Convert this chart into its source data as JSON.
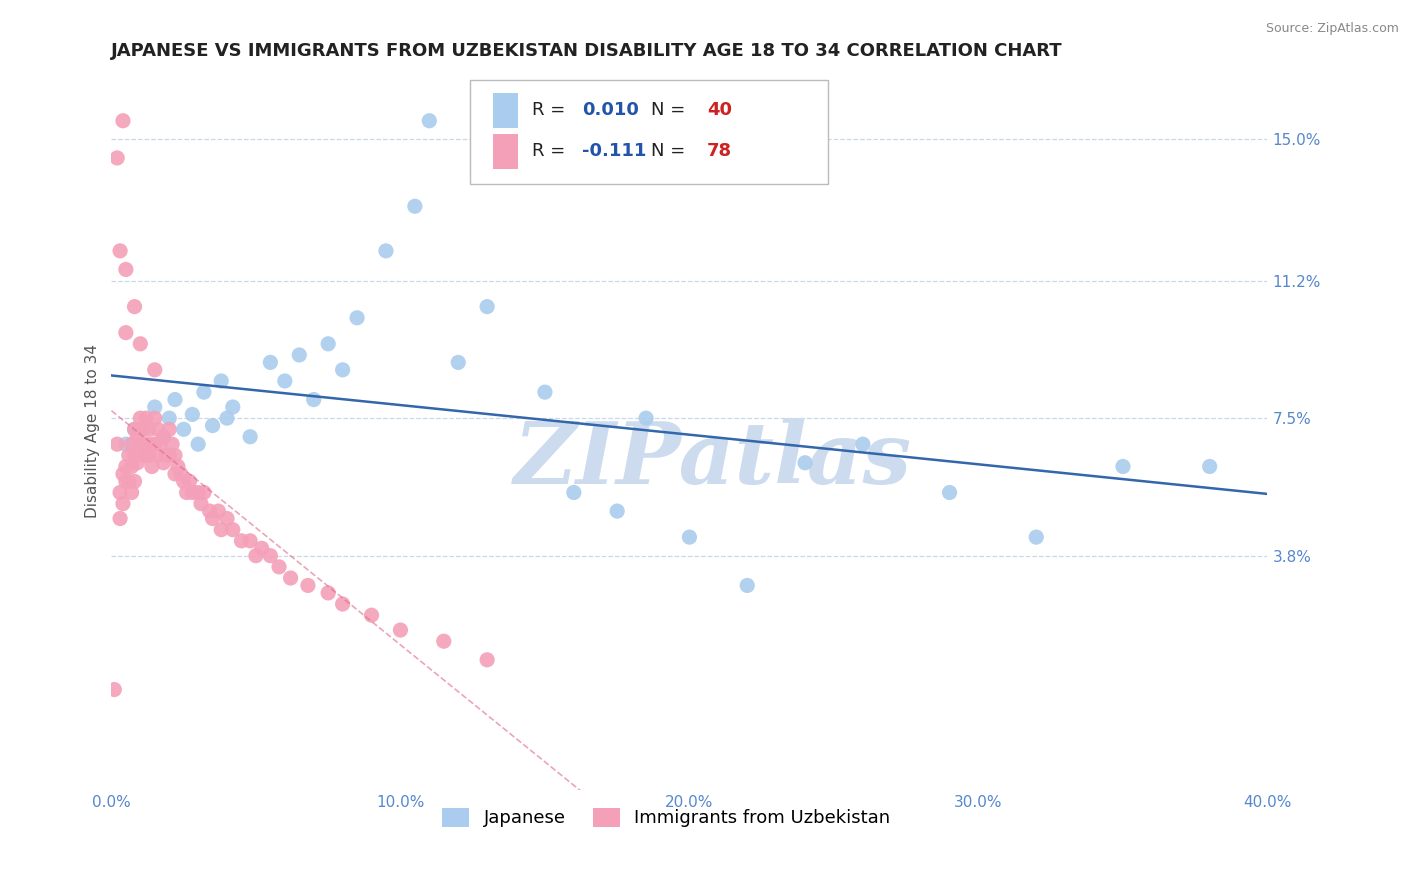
{
  "title": "JAPANESE VS IMMIGRANTS FROM UZBEKISTAN DISABILITY AGE 18 TO 34 CORRELATION CHART",
  "source": "Source: ZipAtlas.com",
  "ylabel": "Disability Age 18 to 34",
  "xlim": [
    0.0,
    0.4
  ],
  "ylim": [
    -0.025,
    0.168
  ],
  "yticks": [
    0.038,
    0.075,
    0.112,
    0.15
  ],
  "ytick_labels": [
    "3.8%",
    "7.5%",
    "11.2%",
    "15.0%"
  ],
  "xticks": [
    0.0,
    0.1,
    0.2,
    0.3,
    0.4
  ],
  "xtick_labels": [
    "0.0%",
    "10.0%",
    "20.0%",
    "30.0%",
    "40.0%"
  ],
  "background_color": "#ffffff",
  "grid_color": "#c8d8e8",
  "watermark": "ZIPatlas",
  "watermark_color": "#ccdcee",
  "tick_color": "#5588cc",
  "series": [
    {
      "name": "Japanese",
      "R": 0.01,
      "N": 40,
      "color": "#aaccee",
      "trend_color": "#3366aa",
      "trend_style": "solid",
      "x": [
        0.005,
        0.008,
        0.012,
        0.015,
        0.018,
        0.02,
        0.022,
        0.025,
        0.028,
        0.03,
        0.032,
        0.035,
        0.038,
        0.04,
        0.042,
        0.048,
        0.055,
        0.06,
        0.065,
        0.07,
        0.075,
        0.08,
        0.085,
        0.095,
        0.105,
        0.11,
        0.12,
        0.13,
        0.15,
        0.16,
        0.175,
        0.185,
        0.2,
        0.22,
        0.24,
        0.26,
        0.29,
        0.32,
        0.35,
        0.38
      ],
      "y": [
        0.068,
        0.072,
        0.065,
        0.078,
        0.07,
        0.075,
        0.08,
        0.072,
        0.076,
        0.068,
        0.082,
        0.073,
        0.085,
        0.075,
        0.078,
        0.07,
        0.09,
        0.085,
        0.092,
        0.08,
        0.095,
        0.088,
        0.102,
        0.12,
        0.132,
        0.155,
        0.09,
        0.105,
        0.082,
        0.055,
        0.05,
        0.075,
        0.043,
        0.03,
        0.063,
        0.068,
        0.055,
        0.043,
        0.062,
        0.062
      ]
    },
    {
      "name": "Immigrants from Uzbekistan",
      "R": -0.111,
      "N": 78,
      "color": "#f4a0b8",
      "trend_color": "#e06888",
      "trend_style": "dashed",
      "x": [
        0.001,
        0.002,
        0.003,
        0.003,
        0.004,
        0.004,
        0.005,
        0.005,
        0.006,
        0.006,
        0.007,
        0.007,
        0.007,
        0.008,
        0.008,
        0.008,
        0.009,
        0.009,
        0.01,
        0.01,
        0.011,
        0.011,
        0.012,
        0.012,
        0.013,
        0.013,
        0.014,
        0.014,
        0.015,
        0.015,
        0.016,
        0.016,
        0.017,
        0.018,
        0.018,
        0.019,
        0.02,
        0.02,
        0.021,
        0.022,
        0.022,
        0.023,
        0.024,
        0.025,
        0.026,
        0.027,
        0.028,
        0.03,
        0.031,
        0.032,
        0.034,
        0.035,
        0.037,
        0.038,
        0.04,
        0.042,
        0.045,
        0.048,
        0.05,
        0.052,
        0.055,
        0.058,
        0.062,
        0.068,
        0.075,
        0.08,
        0.09,
        0.1,
        0.115,
        0.13,
        0.005,
        0.008,
        0.01,
        0.015,
        0.003,
        0.005,
        0.004,
        0.002
      ],
      "y": [
        0.002,
        0.068,
        0.055,
        0.048,
        0.06,
        0.052,
        0.062,
        0.058,
        0.065,
        0.058,
        0.068,
        0.062,
        0.055,
        0.072,
        0.065,
        0.058,
        0.07,
        0.063,
        0.075,
        0.068,
        0.072,
        0.065,
        0.075,
        0.068,
        0.072,
        0.065,
        0.068,
        0.062,
        0.075,
        0.068,
        0.072,
        0.065,
        0.068,
        0.07,
        0.063,
        0.065,
        0.072,
        0.065,
        0.068,
        0.065,
        0.06,
        0.062,
        0.06,
        0.058,
        0.055,
        0.058,
        0.055,
        0.055,
        0.052,
        0.055,
        0.05,
        0.048,
        0.05,
        0.045,
        0.048,
        0.045,
        0.042,
        0.042,
        0.038,
        0.04,
        0.038,
        0.035,
        0.032,
        0.03,
        0.028,
        0.025,
        0.022,
        0.018,
        0.015,
        0.01,
        0.098,
        0.105,
        0.095,
        0.088,
        0.12,
        0.115,
        0.155,
        0.145
      ]
    }
  ],
  "legend_R_color": "#2255aa",
  "legend_N_color": "#cc2222",
  "title_fontsize": 13,
  "axis_label_fontsize": 11,
  "tick_fontsize": 11,
  "legend_fontsize": 13
}
